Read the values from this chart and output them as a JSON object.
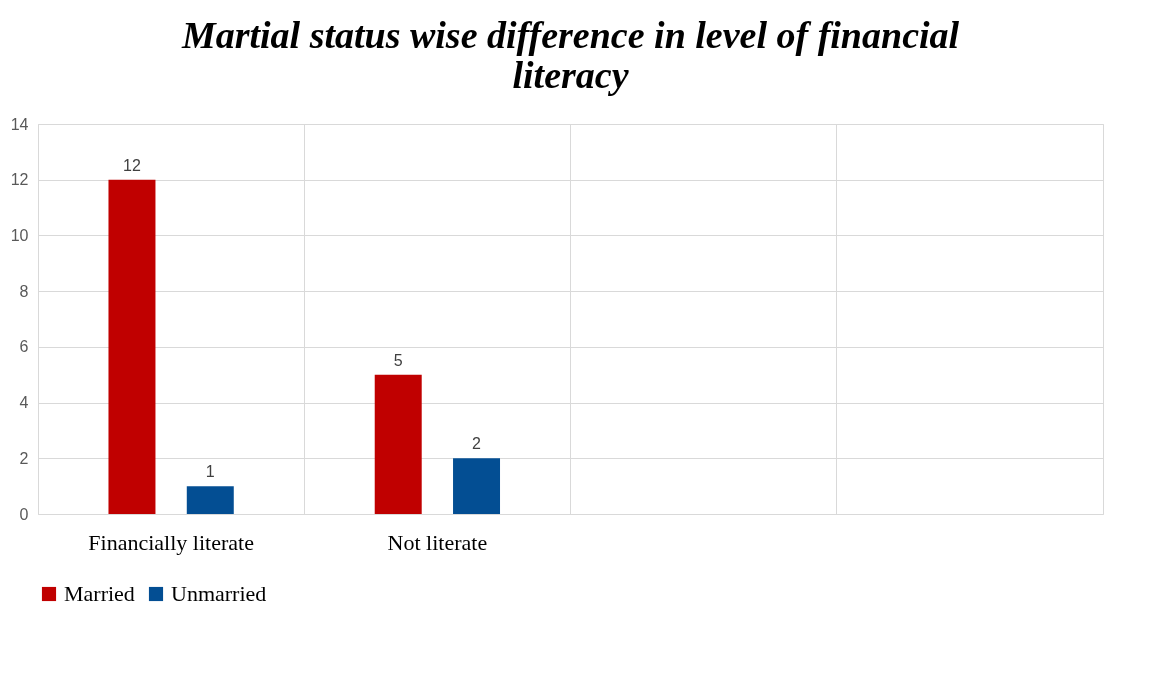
{
  "chart_data": {
    "type": "bar",
    "title": "Martial status wise difference in level of financial literacy",
    "categories": [
      "Financially literate",
      "Not literate",
      null,
      null
    ],
    "series": [
      {
        "name": "Married",
        "color": "#c00000",
        "values": [
          12,
          5,
          null,
          null
        ]
      },
      {
        "name": "Unmarried",
        "color": "#034e93",
        "values": [
          1,
          2,
          null,
          null
        ]
      }
    ],
    "ylim": [
      0,
      14
    ],
    "yticks": [
      0,
      2,
      4,
      6,
      8,
      10,
      12,
      14
    ],
    "grid": true,
    "legend": "bottom",
    "data_labels": true
  }
}
